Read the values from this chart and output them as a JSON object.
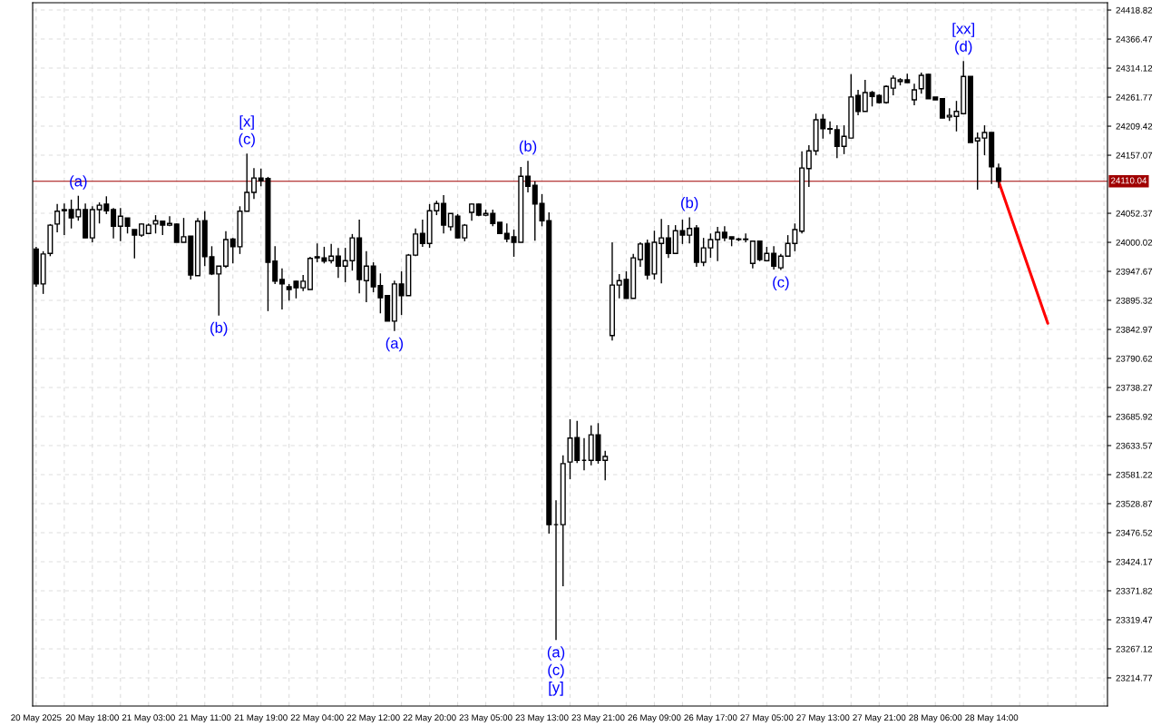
{
  "chart_data": {
    "type": "candlestick",
    "categories": [
      "20 May 2025",
      null,
      null,
      null,
      null,
      null,
      null,
      null,
      "20 May 18:00",
      null,
      null,
      null,
      null,
      null,
      null,
      null,
      "21 May 03:00",
      null,
      null,
      null,
      null,
      null,
      null,
      null,
      "21 May 11:00",
      null,
      null,
      null,
      null,
      null,
      null,
      null,
      "21 May 19:00",
      null,
      null,
      null,
      null,
      null,
      null,
      null,
      "22 May 04:00",
      null,
      null,
      null,
      null,
      null,
      null,
      null,
      "22 May 12:00",
      null,
      null,
      null,
      null,
      null,
      null,
      null,
      "22 May 20:00",
      null,
      null,
      null,
      null,
      null,
      null,
      null,
      "23 May 05:00",
      null,
      null,
      null,
      null,
      null,
      null,
      null,
      "23 May 13:00",
      null,
      null,
      null,
      null,
      null,
      null,
      null,
      "23 May 21:00",
      null,
      null,
      null,
      null,
      null,
      null,
      null,
      "26 May 09:00",
      null,
      null,
      null,
      null,
      null,
      null,
      null,
      "26 May 17:00",
      null,
      null,
      null,
      null,
      null,
      null,
      null,
      "27 May 05:00",
      null,
      null,
      null,
      null,
      null,
      null,
      null,
      "27 May 13:00",
      null,
      null,
      null,
      null,
      null,
      null,
      null,
      "27 May 21:00",
      null,
      null,
      null,
      null,
      null,
      null,
      null,
      "28 May 06:00",
      null,
      null,
      null,
      null,
      null,
      null,
      null,
      "28 May 14:00",
      null,
      null,
      null,
      null,
      null,
      null,
      null,
      null,
      null,
      null,
      null,
      null,
      null,
      null,
      null,
      null
    ],
    "ohlc": [
      [
        23988,
        23992,
        23920,
        23925
      ],
      [
        23925,
        23984,
        23907,
        23979
      ],
      [
        23980,
        24033,
        23975,
        24031
      ],
      [
        24033,
        24069,
        24018,
        24056
      ],
      [
        24059,
        24070,
        24013,
        24057
      ],
      [
        24059,
        24077,
        24025,
        24044
      ],
      [
        24046,
        24084,
        24039,
        24059
      ],
      [
        24059,
        24070,
        24008,
        24008
      ],
      [
        24008,
        24065,
        24000,
        24059
      ],
      [
        24059,
        24072,
        24034,
        24067
      ],
      [
        24069,
        24083,
        24051,
        24057
      ],
      [
        24059,
        24062,
        24007,
        24029
      ],
      [
        24029,
        24062,
        24002,
        24047
      ],
      [
        24044,
        24044,
        24016,
        24029
      ],
      [
        24023,
        24023,
        23971,
        24013
      ],
      [
        24013,
        24034,
        24010,
        24033
      ],
      [
        24016,
        24034,
        24015,
        24031
      ],
      [
        24033,
        24049,
        24016,
        24039
      ],
      [
        24038,
        24039,
        24013,
        24031
      ],
      [
        24031,
        24047,
        24029,
        24034
      ],
      [
        24033,
        24034,
        24000,
        24000
      ],
      [
        24000,
        24044,
        24000,
        24010
      ],
      [
        24011,
        24011,
        23933,
        23941
      ],
      [
        23940,
        24044,
        23940,
        24038
      ],
      [
        24039,
        24056,
        23957,
        23974
      ],
      [
        23974,
        23993,
        23941,
        23943
      ],
      [
        23943,
        23957,
        23868,
        23957
      ],
      [
        23957,
        24020,
        23954,
        24005
      ],
      [
        24006,
        24008,
        23962,
        23992
      ],
      [
        23992,
        24065,
        23979,
        24056
      ],
      [
        24056,
        24160,
        24056,
        24090
      ],
      [
        24090,
        24134,
        24078,
        24116
      ],
      [
        24116,
        24133,
        24101,
        24111
      ],
      [
        24115,
        24118,
        23876,
        23964
      ],
      [
        23966,
        23993,
        23925,
        23930
      ],
      [
        23933,
        23953,
        23879,
        23925
      ],
      [
        23920,
        23925,
        23895,
        23915
      ],
      [
        23930,
        23931,
        23899,
        23918
      ],
      [
        23918,
        23941,
        23912,
        23930
      ],
      [
        23915,
        23974,
        23915,
        23971
      ],
      [
        23974,
        23998,
        23964,
        23972
      ],
      [
        23972,
        23992,
        23962,
        23966
      ],
      [
        23967,
        23997,
        23962,
        23975
      ],
      [
        23975,
        23990,
        23936,
        23957
      ],
      [
        23957,
        23990,
        23928,
        23967
      ],
      [
        23967,
        24015,
        23949,
        24008
      ],
      [
        24008,
        24041,
        23908,
        23933
      ],
      [
        23931,
        23984,
        23892,
        23957
      ],
      [
        23957,
        23964,
        23910,
        23920
      ],
      [
        23922,
        23944,
        23872,
        23900
      ],
      [
        23904,
        23904,
        23858,
        23858
      ],
      [
        23858,
        23931,
        23840,
        23925
      ],
      [
        23925,
        23948,
        23869,
        23904
      ],
      [
        23904,
        23979,
        23904,
        23977
      ],
      [
        23977,
        24025,
        23975,
        24015
      ],
      [
        24016,
        24041,
        23992,
        23998
      ],
      [
        23998,
        24069,
        23990,
        24057
      ],
      [
        24057,
        24075,
        24049,
        24070
      ],
      [
        24070,
        24085,
        24016,
        24031
      ],
      [
        24028,
        24052,
        24021,
        24052
      ],
      [
        24047,
        24051,
        24007,
        24008
      ],
      [
        24008,
        24033,
        24002,
        24031
      ],
      [
        24054,
        24070,
        24039,
        24069
      ],
      [
        24069,
        24070,
        24047,
        24049
      ],
      [
        24049,
        24059,
        24047,
        24052
      ],
      [
        24052,
        24059,
        24029,
        24034
      ],
      [
        24036,
        24036,
        24016,
        24016
      ],
      [
        24016,
        24034,
        24000,
        24006
      ],
      [
        24010,
        24023,
        23974,
        24000
      ],
      [
        24000,
        24136,
        24000,
        24119
      ],
      [
        24119,
        24147,
        24090,
        24101
      ],
      [
        24103,
        24110,
        24003,
        24069
      ],
      [
        24070,
        24087,
        24029,
        24039
      ],
      [
        24039,
        24054,
        23475,
        23491
      ],
      [
        23491,
        23535,
        23283,
        23491
      ],
      [
        23491,
        23616,
        23380,
        23601
      ],
      [
        23604,
        23681,
        23573,
        23647
      ],
      [
        23648,
        23678,
        23602,
        23607
      ],
      [
        23607,
        23647,
        23589,
        23607
      ],
      [
        23607,
        23670,
        23598,
        23653
      ],
      [
        23653,
        23674,
        23601,
        23607
      ],
      [
        23607,
        23624,
        23571,
        23614
      ],
      [
        23832,
        24000,
        23823,
        23923
      ],
      [
        23923,
        23943,
        23899,
        23931
      ],
      [
        23933,
        23948,
        23899,
        23899
      ],
      [
        23899,
        23979,
        23899,
        23972
      ],
      [
        23969,
        24000,
        23956,
        23997
      ],
      [
        23998,
        24005,
        23933,
        23941
      ],
      [
        23943,
        24021,
        23933,
        24000
      ],
      [
        23998,
        24042,
        23926,
        24008
      ],
      [
        24008,
        24031,
        23972,
        23980
      ],
      [
        23980,
        24031,
        23980,
        24021
      ],
      [
        24021,
        24041,
        23997,
        24013
      ],
      [
        24013,
        24045,
        23998,
        24025
      ],
      [
        24026,
        24031,
        23956,
        23964
      ],
      [
        23964,
        24008,
        23957,
        23990
      ],
      [
        23990,
        24016,
        23972,
        24005
      ],
      [
        24005,
        24028,
        23966,
        24018
      ],
      [
        24018,
        24029,
        24002,
        24008
      ],
      [
        24010,
        24010,
        23993,
        24006
      ],
      [
        24006,
        24008,
        24002,
        24005
      ],
      [
        24006,
        24016,
        24000,
        24005
      ],
      [
        23962,
        24003,
        23953,
        24002
      ],
      [
        24002,
        24002,
        23966,
        23969
      ],
      [
        23967,
        23992,
        23966,
        23980
      ],
      [
        23980,
        23993,
        23951,
        23957
      ],
      [
        23954,
        23979,
        23950,
        23975
      ],
      [
        23975,
        24013,
        23975,
        23998
      ],
      [
        23998,
        24034,
        23984,
        24023
      ],
      [
        24020,
        24164,
        24016,
        24134
      ],
      [
        24133,
        24175,
        24100,
        24165
      ],
      [
        24165,
        24232,
        24157,
        24221
      ],
      [
        24222,
        24231,
        24187,
        24205
      ],
      [
        24205,
        24218,
        24195,
        24204
      ],
      [
        24203,
        24211,
        24152,
        24173
      ],
      [
        24173,
        24211,
        24159,
        24191
      ],
      [
        24188,
        24303,
        24188,
        24262
      ],
      [
        24265,
        24275,
        24229,
        24236
      ],
      [
        24236,
        24293,
        24236,
        24270
      ],
      [
        24270,
        24273,
        24245,
        24263
      ],
      [
        24265,
        24267,
        24250,
        24252
      ],
      [
        24252,
        24283,
        24250,
        24281
      ],
      [
        24278,
        24301,
        24265,
        24296
      ],
      [
        24290,
        24296,
        24283,
        24293
      ],
      [
        24293,
        24304,
        24288,
        24288
      ],
      [
        24257,
        24286,
        24247,
        24275
      ],
      [
        24277,
        24306,
        24268,
        24301
      ],
      [
        24303,
        24304,
        24259,
        24259
      ],
      [
        24262,
        24262,
        24257,
        24257
      ],
      [
        24259,
        24260,
        24224,
        24224
      ],
      [
        24226,
        24242,
        24219,
        24229
      ],
      [
        24227,
        24255,
        24200,
        24236
      ],
      [
        24232,
        24327,
        24231,
        24299
      ],
      [
        24299,
        24299,
        24180,
        24180
      ],
      [
        24183,
        24198,
        24095,
        24188
      ],
      [
        24188,
        24211,
        24157,
        24198
      ],
      [
        24198,
        24198,
        24105,
        24136
      ],
      [
        24134,
        24142,
        24098,
        24110
      ],
      null,
      null,
      null,
      null,
      null,
      null,
      null,
      null,
      null,
      null,
      null,
      null,
      null,
      null,
      null
    ],
    "series": [
      {
        "type": "line",
        "color": "#ff0000",
        "values": [
          null,
          null,
          null,
          null,
          null,
          null,
          null,
          null,
          null,
          null,
          null,
          null,
          null,
          null,
          null,
          null,
          null,
          null,
          null,
          null,
          null,
          null,
          null,
          null,
          null,
          null,
          null,
          null,
          null,
          null,
          null,
          null,
          null,
          null,
          null,
          null,
          null,
          null,
          null,
          null,
          null,
          null,
          null,
          null,
          null,
          null,
          null,
          null,
          null,
          null,
          null,
          null,
          null,
          null,
          null,
          null,
          null,
          null,
          null,
          null,
          null,
          null,
          null,
          null,
          null,
          null,
          null,
          null,
          null,
          null,
          null,
          null,
          null,
          null,
          null,
          null,
          null,
          null,
          null,
          null,
          null,
          null,
          null,
          null,
          null,
          null,
          null,
          null,
          null,
          null,
          null,
          null,
          null,
          null,
          null,
          null,
          null,
          null,
          null,
          null,
          null,
          null,
          null,
          null,
          null,
          null,
          null,
          null,
          null,
          null,
          null,
          null,
          null,
          null,
          null,
          null,
          null,
          null,
          null,
          null,
          null,
          null,
          null,
          null,
          null,
          null,
          null,
          null,
          null,
          null,
          null,
          null,
          null,
          null,
          null,
          null,
          null,
          24110,
          null,
          null,
          null,
          null,
          null,
          null,
          23854,
          null,
          null,
          null,
          null,
          null,
          null,
          null,
          null
        ]
      }
    ],
    "ylim": [
      23164,
      24432
    ],
    "yticks": [
      24418.82,
      24366.47,
      24314.12,
      24261.77,
      24209.42,
      24157.07,
      24052.37,
      24000.02,
      23947.67,
      23895.32,
      23842.97,
      23790.62,
      23738.27,
      23685.92,
      23633.57,
      23581.22,
      23528.87,
      23476.52,
      23424.17,
      23371.82,
      23319.47,
      23267.12,
      23214.77
    ],
    "ref_lines": [
      {
        "axis": "y",
        "value": 24110.04,
        "label": "24110.04",
        "color": "#a00000"
      }
    ],
    "annotations": [
      {
        "text": "(a)",
        "y": 24084
      },
      {
        "text": "(c)",
        "y": 24160
      },
      {
        "text": "[x]",
        "y": 24160
      },
      {
        "text": "(b)",
        "y": 23868
      },
      {
        "text": "(a)",
        "y": 23840
      },
      {
        "text": "(b)",
        "y": 24147
      },
      {
        "text": "(a)",
        "y": 23283
      },
      {
        "text": "(c)",
        "y": 23283
      },
      {
        "text": "[y]",
        "y": 23283
      },
      {
        "text": "(b)",
        "y": 24045
      },
      {
        "text": "(c)",
        "y": 23950
      },
      {
        "text": "(d)",
        "y": 24327
      },
      {
        "text": "[xx]",
        "y": 24327
      }
    ],
    "grid": true
  }
}
